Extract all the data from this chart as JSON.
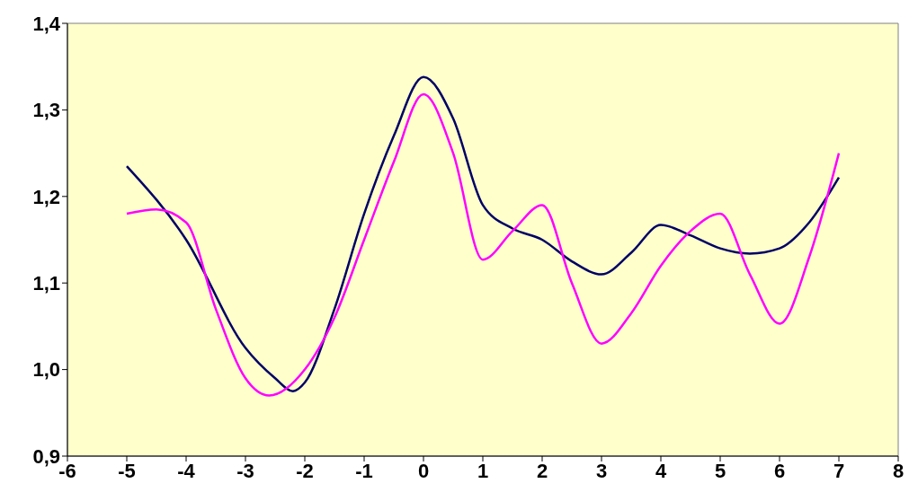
{
  "chart_data": {
    "type": "line",
    "xlim": [
      -6,
      8
    ],
    "xticks": [
      -6,
      -5,
      -4,
      -3,
      -2,
      -1,
      0,
      1,
      2,
      3,
      4,
      5,
      6,
      7,
      8
    ],
    "ylim": [
      0.9,
      1.4
    ],
    "yticks": [
      {
        "value": 0.9,
        "label": "0,9"
      },
      {
        "value": 1.0,
        "label": "1,0"
      },
      {
        "value": 1.1,
        "label": "1,1"
      },
      {
        "value": 1.2,
        "label": "1,2"
      },
      {
        "value": 1.3,
        "label": "1,3"
      },
      {
        "value": 1.4,
        "label": "1,4"
      }
    ],
    "grid": false,
    "legend": false,
    "marker": "none",
    "line_style": "solid",
    "series": [
      {
        "color": "#000066",
        "x": [
          -5,
          -4,
          -3,
          -2.5,
          -2.2,
          -2,
          -1.5,
          -1,
          -0.5,
          0,
          0.5,
          1,
          1.5,
          2,
          2.5,
          3,
          3.5,
          4,
          4.5,
          5,
          5.5,
          6,
          6.5,
          7
        ],
        "values": [
          1.235,
          1.15,
          1.025,
          0.99,
          0.975,
          0.985,
          1.07,
          1.18,
          1.27,
          1.338,
          1.29,
          1.19,
          1.163,
          1.15,
          1.125,
          1.11,
          1.135,
          1.167,
          1.155,
          1.14,
          1.134,
          1.14,
          1.17,
          1.222
        ]
      },
      {
        "color": "#ff00ff",
        "x": [
          -5,
          -4.5,
          -4,
          -3.5,
          -3,
          -2.6,
          -2,
          -1.5,
          -1,
          -0.5,
          0,
          0.5,
          1,
          1.5,
          2,
          2.5,
          3,
          3.5,
          4,
          4.5,
          5,
          5.5,
          6,
          6.5,
          7
        ],
        "values": [
          1.18,
          1.185,
          1.17,
          1.07,
          0.99,
          0.97,
          1.0,
          1.06,
          1.15,
          1.24,
          1.318,
          1.25,
          1.127,
          1.16,
          1.19,
          1.1,
          1.03,
          1.065,
          1.12,
          1.16,
          1.18,
          1.11,
          1.053,
          1.13,
          1.25
        ]
      }
    ]
  }
}
